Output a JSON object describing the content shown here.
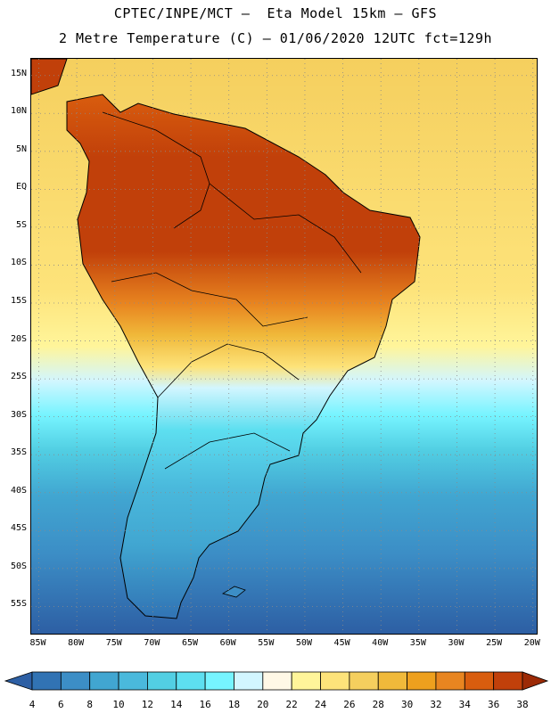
{
  "header": {
    "line1": "CPTEC/INPE/MCT –  Eta Model 15km – GFS",
    "line2": "2 Metre Temperature (C) – 01/06/2020 12UTC fct=129h"
  },
  "map": {
    "latitude_labels": [
      "15N",
      "10N",
      "5N",
      "EQ",
      "5S",
      "10S",
      "15S",
      "20S",
      "25S",
      "30S",
      "35S",
      "40S",
      "45S",
      "50S",
      "55S"
    ],
    "longitude_labels": [
      "85W",
      "80W",
      "75W",
      "70W",
      "65W",
      "60W",
      "55W",
      "50W",
      "45W",
      "40W",
      "35W",
      "30W",
      "25W",
      "20W"
    ],
    "extent": {
      "lon_min": -86,
      "lon_max": -19.5,
      "lat_min": -58.6,
      "lat_max": 17.2
    }
  },
  "colorbar": {
    "ticks": [
      "4",
      "6",
      "8",
      "10",
      "12",
      "14",
      "16",
      "18",
      "20",
      "22",
      "24",
      "26",
      "28",
      "30",
      "32",
      "34",
      "36",
      "38"
    ],
    "colors": [
      "#2d5fa4",
      "#3173b4",
      "#3c8ec6",
      "#41a6d1",
      "#4ab9dc",
      "#52cfe3",
      "#5ddff0",
      "#76f4ff",
      "#d2f6ff",
      "#fff8e6",
      "#fff59a",
      "#fde37a",
      "#f5cf5e",
      "#f0b93a",
      "#eea01e",
      "#e88520",
      "#d95d0e",
      "#c1400a",
      "#9c2a06"
    ]
  }
}
